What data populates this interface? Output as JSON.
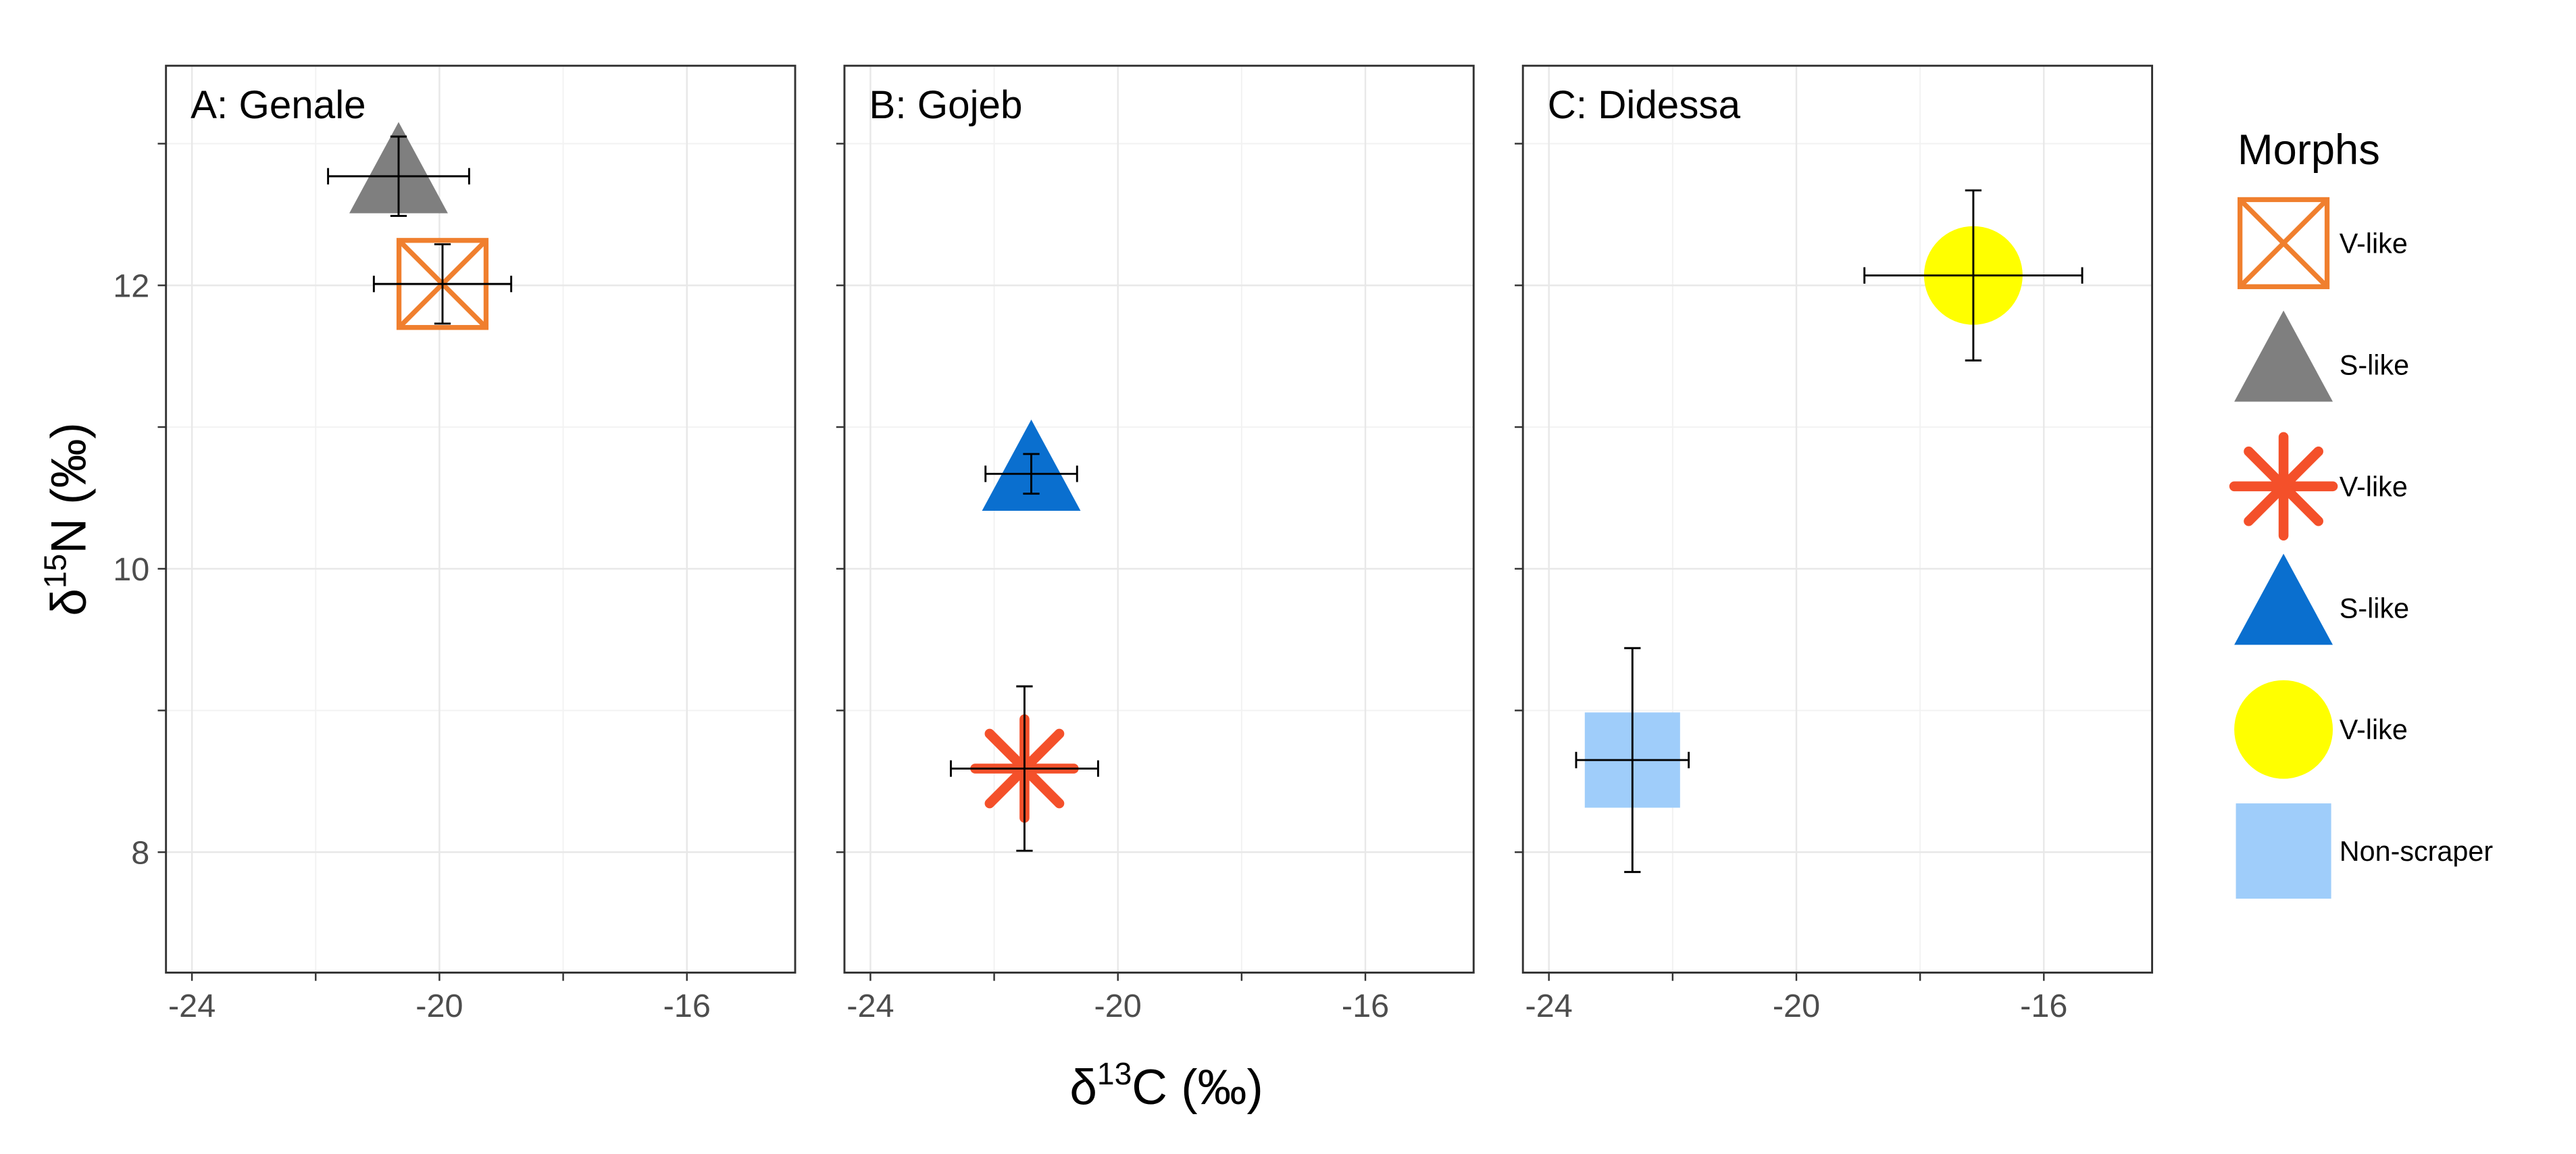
{
  "chart_data": [
    {
      "type": "scatter",
      "title": "A: Genale",
      "xlim": [
        -24.42,
        -14.25
      ],
      "xticks": [
        -24,
        -20,
        -16
      ],
      "minor_xticks": [
        -22,
        -18
      ],
      "ylim": [
        7.15,
        13.55
      ],
      "yticks": [
        8,
        10,
        12
      ],
      "minor_yticks": [
        9,
        11,
        13
      ],
      "grid": true,
      "series": [
        {
          "name": "V-like",
          "color": "#f07f2e",
          "shape": "square-x",
          "x": [
            -19.95
          ],
          "y": [
            12.01
          ],
          "xerr": [
            1.11
          ],
          "yerr": [
            0.28
          ]
        },
        {
          "name": "S-like",
          "color": "#7f7f7f",
          "shape": "triangle",
          "x": [
            -20.66
          ],
          "y": [
            12.77
          ],
          "xerr": [
            1.14
          ],
          "yerr": [
            0.28
          ]
        }
      ]
    },
    {
      "type": "scatter",
      "title": "B: Gojeb",
      "xlim": [
        -24.42,
        -14.25
      ],
      "xticks": [
        -24,
        -20,
        -16
      ],
      "minor_xticks": [
        -22,
        -18
      ],
      "ylim": [
        7.15,
        13.55
      ],
      "yticks": [
        8,
        10,
        12
      ],
      "minor_yticks": [
        9,
        11,
        13
      ],
      "grid": true,
      "series": [
        {
          "name": "V-like",
          "color": "#f4502a",
          "shape": "asterisk",
          "x": [
            -21.51
          ],
          "y": [
            8.59
          ],
          "xerr": [
            1.19
          ],
          "yerr": [
            0.58
          ]
        },
        {
          "name": "S-like",
          "color": "#0a6fcf",
          "shape": "triangle",
          "x": [
            -21.4
          ],
          "y": [
            10.67
          ],
          "xerr": [
            0.74
          ],
          "yerr": [
            0.14
          ]
        }
      ]
    },
    {
      "type": "scatter",
      "title": "C: Didessa",
      "xlim": [
        -24.42,
        -14.25
      ],
      "xticks": [
        -24,
        -20,
        -16
      ],
      "minor_xticks": [
        -22,
        -18
      ],
      "ylim": [
        7.15,
        13.55
      ],
      "yticks": [
        8,
        10,
        12
      ],
      "minor_yticks": [
        9,
        11,
        13
      ],
      "grid": true,
      "series": [
        {
          "name": "V-like",
          "color": "#ffff00",
          "shape": "circle",
          "x": [
            -17.14
          ],
          "y": [
            12.07
          ],
          "xerr": [
            1.76
          ],
          "yerr": [
            0.6
          ]
        },
        {
          "name": "Non-scraper",
          "color": "#9fcdfa",
          "shape": "square",
          "x": [
            -22.65
          ],
          "y": [
            8.65
          ],
          "xerr": [
            0.91
          ],
          "yerr": [
            0.79
          ]
        }
      ]
    }
  ],
  "xlabel": {
    "prefix": "δ",
    "sup": "13",
    "suffix": "C (‰)"
  },
  "ylabel": {
    "prefix": "δ",
    "sup": "15",
    "suffix": "N (‰)"
  },
  "legend": {
    "title": "Morphs",
    "position": "right"
  }
}
